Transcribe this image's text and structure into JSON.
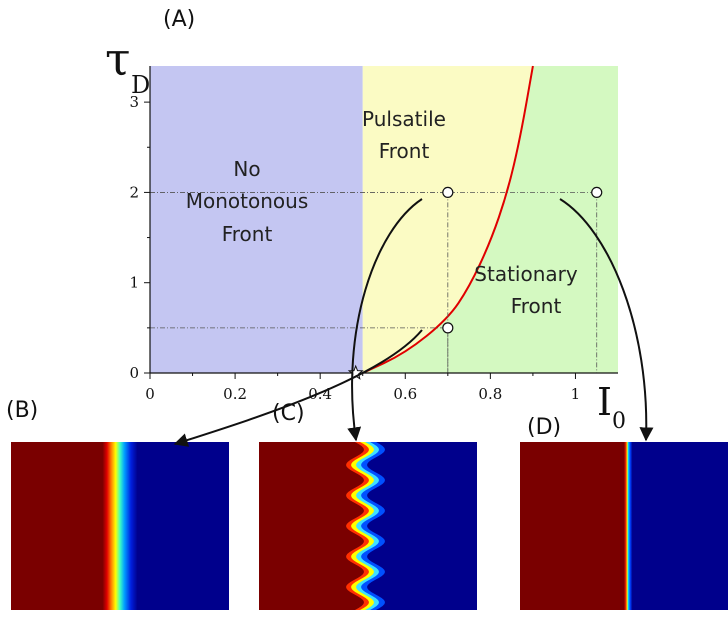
{
  "panels": {
    "a": "(A)",
    "b": "(B)",
    "c": "(C)",
    "d": "(D)"
  },
  "axes": {
    "y_symbol": "τ",
    "y_subscript": "D",
    "x_symbol": "I",
    "x_subscript": "0",
    "x_ticks": [
      "0",
      "0.2",
      "0.4",
      "0.6",
      "0.8",
      "1"
    ],
    "y_ticks": [
      "0",
      "1",
      "2",
      "3"
    ]
  },
  "regions": {
    "no_monotonous": [
      "No",
      "Monotonous",
      "Front"
    ],
    "pulsatile": [
      "Pulsatile",
      "Front"
    ],
    "stationary": [
      "Stationary",
      "Front"
    ]
  },
  "colors": {
    "blue_region": "#c4c6f2",
    "yellow_region": "#fbfbc4",
    "green_region": "#d4f9c1",
    "boundary_curve": "#e00000",
    "front_red": "#7a0000",
    "front_blue": "#00008c"
  },
  "chart_data": {
    "type": "phase-diagram",
    "xlim": [
      0,
      1.1
    ],
    "ylim": [
      0,
      3.4
    ],
    "vertical_boundary_x": 0.5,
    "critical_point": [
      0.5,
      0
    ],
    "boundary_curve": [
      [
        0.5,
        0
      ],
      [
        0.6,
        0.22
      ],
      [
        0.7,
        0.6
      ],
      [
        0.75,
        0.95
      ],
      [
        0.8,
        1.45
      ],
      [
        0.84,
        2.0
      ],
      [
        0.87,
        2.6
      ],
      [
        0.9,
        3.4
      ]
    ],
    "sample_points": [
      {
        "x": 0.7,
        "y": 0.5,
        "panel": "(B)"
      },
      {
        "x": 0.7,
        "y": 2.0,
        "panel": "(C)"
      },
      {
        "x": 1.05,
        "y": 2.0,
        "panel": "(D)"
      }
    ]
  }
}
